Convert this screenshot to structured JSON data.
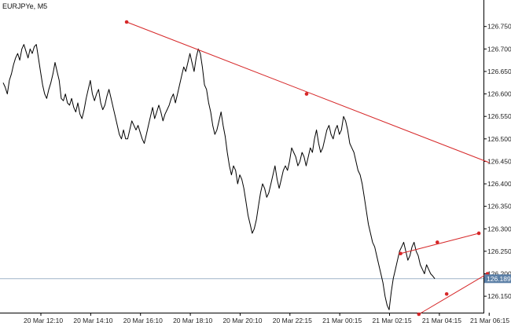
{
  "window": {
    "symbol_label": "EURJPYe, M5"
  },
  "colors": {
    "price_line": "#000000",
    "trendline": "#d62728",
    "current_price_line": "#9fb4c8",
    "current_price_tag_bg": "#5b7fa6",
    "axis": "#000000",
    "background": "#ffffff"
  },
  "current_price": {
    "label": "126.189",
    "value": 126.189
  },
  "chart_data": {
    "type": "line",
    "title": "EURJPYe, M5",
    "xlabel": "",
    "ylabel": "",
    "ylim": [
      126.1,
      126.78
    ],
    "grid": false,
    "y_ticks": [
      126.75,
      126.7,
      126.65,
      126.6,
      126.55,
      126.5,
      126.45,
      126.4,
      126.35,
      126.3,
      126.25,
      126.2,
      126.15
    ],
    "y_tick_labels": [
      "126.750",
      "126.700",
      "126.650",
      "126.600",
      "126.550",
      "126.500",
      "126.450",
      "126.400",
      "126.350",
      "126.300",
      "126.250",
      "126.200",
      "126.150"
    ],
    "x_tick_labels": [
      "20 Mar 12:10",
      "20 Mar 14:10",
      "20 Mar 16:10",
      "20 Mar 18:10",
      "20 Mar 20:10",
      "20 Mar 22:15",
      "21 Mar 00:15",
      "21 Mar 02:15",
      "21 Mar 04:15",
      "21 Mar 06:15"
    ],
    "x_tick_index": [
      0,
      24,
      48,
      72,
      96,
      120,
      144,
      168,
      192,
      216
    ],
    "series": [
      {
        "values": [
          126.625,
          126.615,
          126.6,
          126.63,
          126.645,
          126.665,
          126.68,
          126.69,
          126.675,
          126.7,
          126.71,
          126.695,
          126.68,
          126.7,
          126.69,
          126.705,
          126.71,
          126.68,
          126.65,
          126.62,
          126.6,
          126.59,
          126.61,
          126.625,
          126.645,
          126.67,
          126.65,
          126.63,
          126.59,
          126.585,
          126.6,
          126.58,
          126.575,
          126.59,
          126.57,
          126.56,
          126.58,
          126.555,
          126.545,
          126.565,
          126.59,
          126.61,
          126.63,
          126.6,
          126.585,
          126.6,
          126.61,
          126.58,
          126.565,
          126.575,
          126.595,
          126.61,
          126.59,
          126.57,
          126.55,
          126.53,
          126.51,
          126.5,
          126.52,
          126.5,
          126.5,
          126.52,
          126.54,
          126.53,
          126.52,
          126.53,
          126.515,
          126.5,
          126.49,
          126.51,
          126.53,
          126.55,
          126.57,
          126.545,
          126.56,
          126.575,
          126.56,
          126.54,
          126.555,
          126.565,
          126.575,
          126.59,
          126.6,
          126.58,
          126.6,
          126.62,
          126.64,
          126.66,
          126.65,
          126.67,
          126.69,
          126.67,
          126.65,
          126.68,
          126.7,
          126.69,
          126.66,
          126.62,
          126.61,
          126.58,
          126.56,
          126.53,
          126.51,
          126.52,
          126.54,
          126.56,
          126.53,
          126.505,
          126.47,
          126.44,
          126.42,
          126.44,
          126.43,
          126.4,
          126.42,
          126.41,
          126.39,
          126.36,
          126.33,
          126.31,
          126.29,
          126.3,
          126.32,
          126.35,
          126.38,
          126.4,
          126.39,
          126.37,
          126.38,
          126.4,
          126.42,
          126.44,
          126.41,
          126.39,
          126.41,
          126.43,
          126.44,
          126.43,
          126.45,
          126.48,
          126.47,
          126.46,
          126.44,
          126.45,
          126.47,
          126.46,
          126.44,
          126.46,
          126.48,
          126.47,
          126.5,
          126.52,
          126.49,
          126.47,
          126.48,
          126.5,
          126.52,
          126.53,
          126.51,
          126.5,
          126.52,
          126.53,
          126.51,
          126.52,
          126.55,
          126.54,
          126.52,
          126.49,
          126.48,
          126.47,
          126.45,
          126.43,
          126.42,
          126.4,
          126.37,
          126.34,
          126.31,
          126.29,
          126.27,
          126.26,
          126.24,
          126.22,
          126.2,
          126.18,
          126.15,
          126.13,
          126.12,
          126.16,
          126.19,
          126.21,
          126.23,
          126.25,
          126.26,
          126.27,
          126.25,
          126.23,
          126.24,
          126.26,
          126.27,
          126.25,
          126.24,
          126.22,
          126.21,
          126.2,
          126.22,
          126.21,
          126.2,
          126.195,
          126.189
        ]
      }
    ],
    "trendlines": [
      {
        "x": [
          59.5,
          234.3
        ],
        "y": [
          126.76,
          126.447
        ]
      },
      {
        "x": [
          191.5,
          229.2
        ],
        "y": [
          126.245,
          126.29
        ]
      },
      {
        "x": [
          200.3,
          233.3
        ],
        "y": [
          126.11,
          126.2
        ]
      }
    ],
    "trendline_anchor_points": [
      {
        "x": 59.5,
        "y": 126.76
      },
      {
        "x": 146.2,
        "y": 126.6
      },
      {
        "x": 191.5,
        "y": 126.245
      },
      {
        "x": 209.2,
        "y": 126.27
      },
      {
        "x": 229.2,
        "y": 126.29
      },
      {
        "x": 200.3,
        "y": 126.11
      },
      {
        "x": 213.7,
        "y": 126.155
      },
      {
        "x": 233.3,
        "y": 126.2
      }
    ]
  }
}
